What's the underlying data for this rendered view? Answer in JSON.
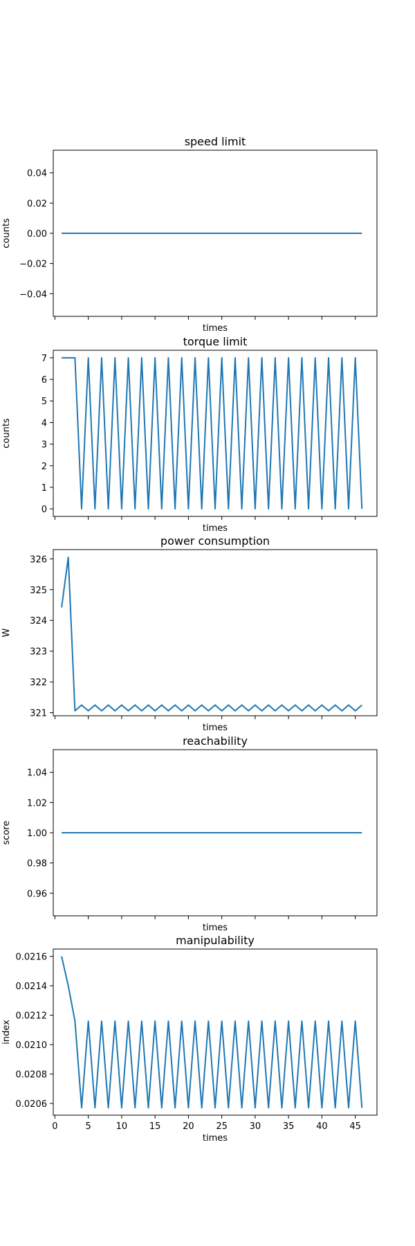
{
  "chart_data": [
    {
      "type": "line",
      "title": "speed limit",
      "xlabel": "times",
      "ylabel": "counts",
      "xlim": [
        -0.25,
        48.25
      ],
      "ylim": [
        -0.055,
        0.055
      ],
      "xticks": [
        0,
        5,
        10,
        15,
        20,
        25,
        30,
        35,
        40,
        45
      ],
      "show_xtick_labels": false,
      "yticks": [
        -0.04,
        -0.02,
        0.0,
        0.02,
        0.04
      ],
      "ytick_labels": [
        "−0.04",
        "−0.02",
        "0.00",
        "0.02",
        "0.04"
      ],
      "color": "#1f77b4",
      "grid": false,
      "x": [
        1,
        46
      ],
      "y": [
        0,
        0
      ]
    },
    {
      "type": "line",
      "title": "torque limit",
      "xlabel": "times",
      "ylabel": "counts",
      "xlim": [
        -0.25,
        48.25
      ],
      "ylim": [
        -0.35,
        7.35
      ],
      "xticks": [
        0,
        5,
        10,
        15,
        20,
        25,
        30,
        35,
        40,
        45
      ],
      "show_xtick_labels": false,
      "yticks": [
        0,
        1,
        2,
        3,
        4,
        5,
        6,
        7
      ],
      "ytick_labels": [
        "0",
        "1",
        "2",
        "3",
        "4",
        "5",
        "6",
        "7"
      ],
      "color": "#1f77b4",
      "grid": false,
      "x": [
        1,
        2,
        3,
        4,
        5,
        6,
        7,
        8,
        9,
        10,
        11,
        12,
        13,
        14,
        15,
        16,
        17,
        18,
        19,
        20,
        21,
        22,
        23,
        24,
        25,
        26,
        27,
        28,
        29,
        30,
        31,
        32,
        33,
        34,
        35,
        36,
        37,
        38,
        39,
        40,
        41,
        42,
        43,
        44,
        45,
        46
      ],
      "y": [
        7,
        7,
        7,
        0,
        7,
        0,
        7,
        0,
        7,
        0,
        7,
        0,
        7,
        0,
        7,
        0,
        7,
        0,
        7,
        0,
        7,
        0,
        7,
        0,
        7,
        0,
        7,
        0,
        7,
        0,
        7,
        0,
        7,
        0,
        7,
        0,
        7,
        0,
        7,
        0,
        7,
        0,
        7,
        0,
        7,
        0
      ]
    },
    {
      "type": "line",
      "title": "power consumption",
      "xlabel": "times",
      "ylabel": "W",
      "xlim": [
        -0.25,
        48.25
      ],
      "ylim": [
        320.9,
        326.3
      ],
      "xticks": [
        0,
        5,
        10,
        15,
        20,
        25,
        30,
        35,
        40,
        45
      ],
      "show_xtick_labels": false,
      "yticks": [
        321,
        322,
        323,
        324,
        325,
        326
      ],
      "ytick_labels": [
        "321",
        "322",
        "323",
        "324",
        "325",
        "326"
      ],
      "color": "#1f77b4",
      "grid": false,
      "x": [
        1,
        2,
        3,
        4,
        5,
        6,
        7,
        8,
        9,
        10,
        11,
        12,
        13,
        14,
        15,
        16,
        17,
        18,
        19,
        20,
        21,
        22,
        23,
        24,
        25,
        26,
        27,
        28,
        29,
        30,
        31,
        32,
        33,
        34,
        35,
        36,
        37,
        38,
        39,
        40,
        41,
        42,
        43,
        44,
        45,
        46
      ],
      "y": [
        324.42,
        326.05,
        321.06,
        321.25,
        321.06,
        321.25,
        321.06,
        321.25,
        321.06,
        321.25,
        321.06,
        321.25,
        321.06,
        321.25,
        321.06,
        321.25,
        321.06,
        321.25,
        321.06,
        321.25,
        321.06,
        321.25,
        321.06,
        321.25,
        321.06,
        321.25,
        321.06,
        321.25,
        321.06,
        321.25,
        321.06,
        321.25,
        321.06,
        321.25,
        321.06,
        321.25,
        321.06,
        321.25,
        321.06,
        321.25,
        321.06,
        321.25,
        321.06,
        321.25,
        321.06,
        321.25
      ]
    },
    {
      "type": "line",
      "title": "reachability",
      "xlabel": "times",
      "ylabel": "score",
      "xlim": [
        -0.25,
        48.25
      ],
      "ylim": [
        0.945,
        1.055
      ],
      "xticks": [
        0,
        5,
        10,
        15,
        20,
        25,
        30,
        35,
        40,
        45
      ],
      "show_xtick_labels": false,
      "yticks": [
        0.96,
        0.98,
        1.0,
        1.02,
        1.04
      ],
      "ytick_labels": [
        "0.96",
        "0.98",
        "1.00",
        "1.02",
        "1.04"
      ],
      "color": "#1f77b4",
      "grid": false,
      "x": [
        1,
        46
      ],
      "y": [
        1,
        1
      ]
    },
    {
      "type": "line",
      "title": "manipulability",
      "xlabel": "times",
      "ylabel": "index",
      "xlim": [
        -0.25,
        48.25
      ],
      "ylim": [
        0.02052,
        0.02165
      ],
      "xticks": [
        0,
        5,
        10,
        15,
        20,
        25,
        30,
        35,
        40,
        45
      ],
      "show_xtick_labels": true,
      "xtick_labels": [
        "0",
        "5",
        "10",
        "15",
        "20",
        "25",
        "30",
        "35",
        "40",
        "45"
      ],
      "yticks": [
        0.0206,
        0.0208,
        0.021,
        0.0212,
        0.0214,
        0.0216
      ],
      "ytick_labels": [
        "0.0206",
        "0.0208",
        "0.0210",
        "0.0212",
        "0.0214",
        "0.0216"
      ],
      "color": "#1f77b4",
      "grid": false,
      "x": [
        1,
        2,
        3,
        4,
        5,
        6,
        7,
        8,
        9,
        10,
        11,
        12,
        13,
        14,
        15,
        16,
        17,
        18,
        19,
        20,
        21,
        22,
        23,
        24,
        25,
        26,
        27,
        28,
        29,
        30,
        31,
        32,
        33,
        34,
        35,
        36,
        37,
        38,
        39,
        40,
        41,
        42,
        43,
        44,
        45,
        46
      ],
      "y": [
        0.0216,
        0.0214,
        0.02116,
        0.02057,
        0.02116,
        0.02057,
        0.02116,
        0.02057,
        0.02116,
        0.02057,
        0.02116,
        0.02057,
        0.02116,
        0.02057,
        0.02116,
        0.02057,
        0.02116,
        0.02057,
        0.02116,
        0.02057,
        0.02116,
        0.02057,
        0.02116,
        0.02057,
        0.02116,
        0.02057,
        0.02116,
        0.02057,
        0.02116,
        0.02057,
        0.02116,
        0.02057,
        0.02116,
        0.02057,
        0.02116,
        0.02057,
        0.02116,
        0.02057,
        0.02116,
        0.02057,
        0.02116,
        0.02057,
        0.02116,
        0.02057,
        0.02116,
        0.02057
      ]
    }
  ]
}
